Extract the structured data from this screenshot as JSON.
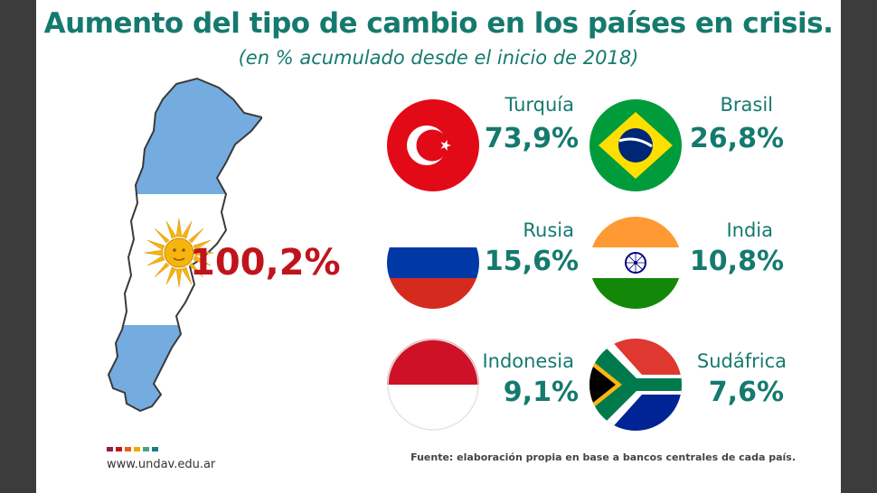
{
  "chart_data": {
    "type": "table",
    "title": "Aumento del tipo de cambio en los países en crisis.",
    "subtitle": "(en % acumulado desde el inicio de 2018)",
    "highlight": {
      "country": "",
      "value_label": "100,2%",
      "value": 100.2,
      "color": "#c0141c"
    },
    "countries": [
      {
        "name": "Turquía",
        "value_label": "73,9%",
        "value": 73.9
      },
      {
        "name": "Brasil",
        "value_label": "26,8%",
        "value": 26.8
      },
      {
        "name": "Rusia",
        "value_label": "15,6%",
        "value": 15.6
      },
      {
        "name": "India",
        "value_label": "10,8%",
        "value": 10.8
      },
      {
        "name": "Indonesia",
        "value_label": "9,1%",
        "value": 9.1
      },
      {
        "name": "Sudáfrica",
        "value_label": "7,6%",
        "value": 7.6
      }
    ]
  },
  "footer": {
    "url": "www.undav.edu.ar",
    "source": "Fuente: elaboración propia en base a bancos centrales de cada país.",
    "dot_colors": [
      "#8e1e4e",
      "#c0141c",
      "#e85d1a",
      "#f2a900",
      "#4aa37d",
      "#1b7a8c"
    ]
  },
  "colors": {
    "accent": "#157a6e",
    "highlight": "#c0141c"
  },
  "icons": [
    "argentina-map-icon",
    "turkey-flag-icon",
    "brazil-flag-icon",
    "russia-flag-icon",
    "india-flag-icon",
    "indonesia-flag-icon",
    "south-africa-flag-icon"
  ]
}
